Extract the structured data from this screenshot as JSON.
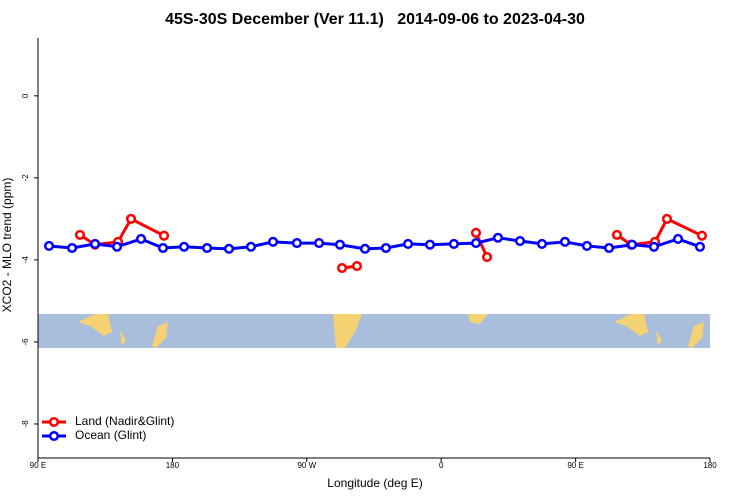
{
  "chart_data": {
    "type": "line",
    "title": "45S-30S December (Ver 11.1)   2014-09-06 to 2023-04-30",
    "x_label": "Longitude (deg E)",
    "y_label": "XCO2 - MLO trend (ppm)",
    "xlim": [
      90,
      540
    ],
    "ylim": [
      -8.83,
      1.41
    ],
    "xticks": [
      {
        "value": 90,
        "label": "90 E"
      },
      180,
      {
        "value": 270,
        "label": "90 W"
      },
      {
        "value": 360,
        "label": "0"
      },
      {
        "value": 450,
        "label": "90 E"
      },
      {
        "value": 540,
        "label": "180"
      }
    ],
    "yticks": [
      0,
      -2,
      -4,
      -6,
      -8
    ],
    "legend": "bottom-left",
    "series": [
      {
        "name": "Land (Nadir&Glint)",
        "color": "#ff0000",
        "x": [
          118.1,
          128.2,
          143.6,
          152.3,
          174.4,
          null,
          293.6,
          303.6,
          null,
          383.3,
          390.7,
          null,
          477.7,
          487.1,
          503.2,
          511.2,
          534.6
        ],
        "values": [
          -3.39,
          -3.63,
          -3.56,
          -3.0,
          -3.41,
          null,
          -4.2,
          -4.15,
          null,
          -3.34,
          -3.93,
          null,
          -3.39,
          -3.63,
          -3.56,
          -3.0,
          -3.41
        ]
      },
      {
        "name": "Ocean (Glint)",
        "color": "#0000ff",
        "x": [
          97.4,
          112.8,
          128.2,
          142.9,
          159,
          173.7,
          187.8,
          203.2,
          217.9,
          232.6,
          247.4,
          263.4,
          278.2,
          292.2,
          309,
          323,
          337.8,
          352.5,
          368.5,
          383.3,
          398,
          412.8,
          427.5,
          442.9,
          457.6,
          472.4,
          487.8,
          502.5,
          518.6,
          533.3
        ],
        "values": [
          -3.66,
          -3.71,
          -3.61,
          -3.68,
          -3.49,
          -3.71,
          -3.68,
          -3.71,
          -3.73,
          -3.68,
          -3.56,
          -3.59,
          -3.59,
          -3.63,
          -3.73,
          -3.71,
          -3.61,
          -3.63,
          -3.61,
          -3.59,
          -3.46,
          -3.54,
          -3.61,
          -3.56,
          -3.66,
          -3.71,
          -3.63,
          -3.68,
          -3.49,
          -3.68
        ]
      }
    ]
  }
}
